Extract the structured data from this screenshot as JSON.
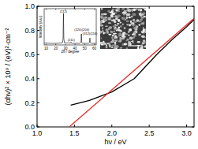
{
  "chart_data": [
    {
      "type": "line",
      "x_label": "hν / eV",
      "y_label": "(αhν)² × 10⁹ / (eV)²·cm⁻²",
      "xlim": [
        1.0,
        3.1
      ],
      "ylim": [
        0,
        1.0
      ],
      "xticks": [
        {
          "value": 1.0,
          "label": "1.0"
        },
        {
          "value": 1.5,
          "label": "1.5"
        },
        {
          "value": 2.0,
          "label": "2.0"
        },
        {
          "value": 2.5,
          "label": "2.5"
        },
        {
          "value": 3.0,
          "label": "3.0"
        }
      ],
      "yticks": [
        {
          "value": 0,
          "label": "0.0"
        },
        {
          "value": 0.2,
          "label": "0.2"
        },
        {
          "value": 0.4,
          "label": "0.4"
        },
        {
          "value": 0.6,
          "label": "0.6"
        },
        {
          "value": 0.8,
          "label": "0.8"
        },
        {
          "value": 1.0,
          "label": "1.0"
        }
      ],
      "series": [
        {
          "color": "#000000",
          "x": [
            1.45,
            1.7,
            2.0,
            2.3,
            2.6,
            2.8,
            3.0,
            3.1
          ],
          "values": [
            0.18,
            0.22,
            0.29,
            0.4,
            0.6,
            0.72,
            0.83,
            0.89
          ]
        },
        {
          "color": "#e8302a",
          "x": [
            1.43,
            3.1
          ],
          "values": [
            0,
            0.9
          ]
        }
      ]
    },
    {
      "type": "line",
      "x_label": "2θ / degree",
      "y_label": "Intensity (a.u.)",
      "tick_labels": "x",
      "xlim": [
        8,
        62
      ],
      "ylim": [
        0,
        115
      ],
      "xticks": [
        10,
        20,
        30,
        40,
        50,
        60
      ],
      "annotations": [
        {
          "text": "(112)",
          "x": 28,
          "y": 100
        },
        {
          "text": "(211)",
          "x": 36,
          "y": 10
        },
        {
          "text": "(220)(204)",
          "x": 47,
          "y": 42
        },
        {
          "text": "(312)(116)",
          "x": 55.5,
          "y": 28
        }
      ],
      "series": [
        {
          "color": "#000000",
          "x": [
            8,
            15,
            20,
            25,
            27,
            27.6,
            28,
            28.4,
            29,
            33,
            35.4,
            35.8,
            36.2,
            37,
            45,
            46.2,
            46.6,
            47,
            47.4,
            48,
            54,
            55,
            55.4,
            55.8,
            56.6,
            60,
            62
          ],
          "values": [
            6,
            5,
            5,
            6,
            7,
            20,
            100,
            20,
            7,
            6,
            6,
            9,
            6,
            5,
            5,
            8,
            35,
            8,
            6,
            5,
            5,
            8,
            22,
            8,
            5,
            5,
            5
          ]
        }
      ]
    }
  ]
}
